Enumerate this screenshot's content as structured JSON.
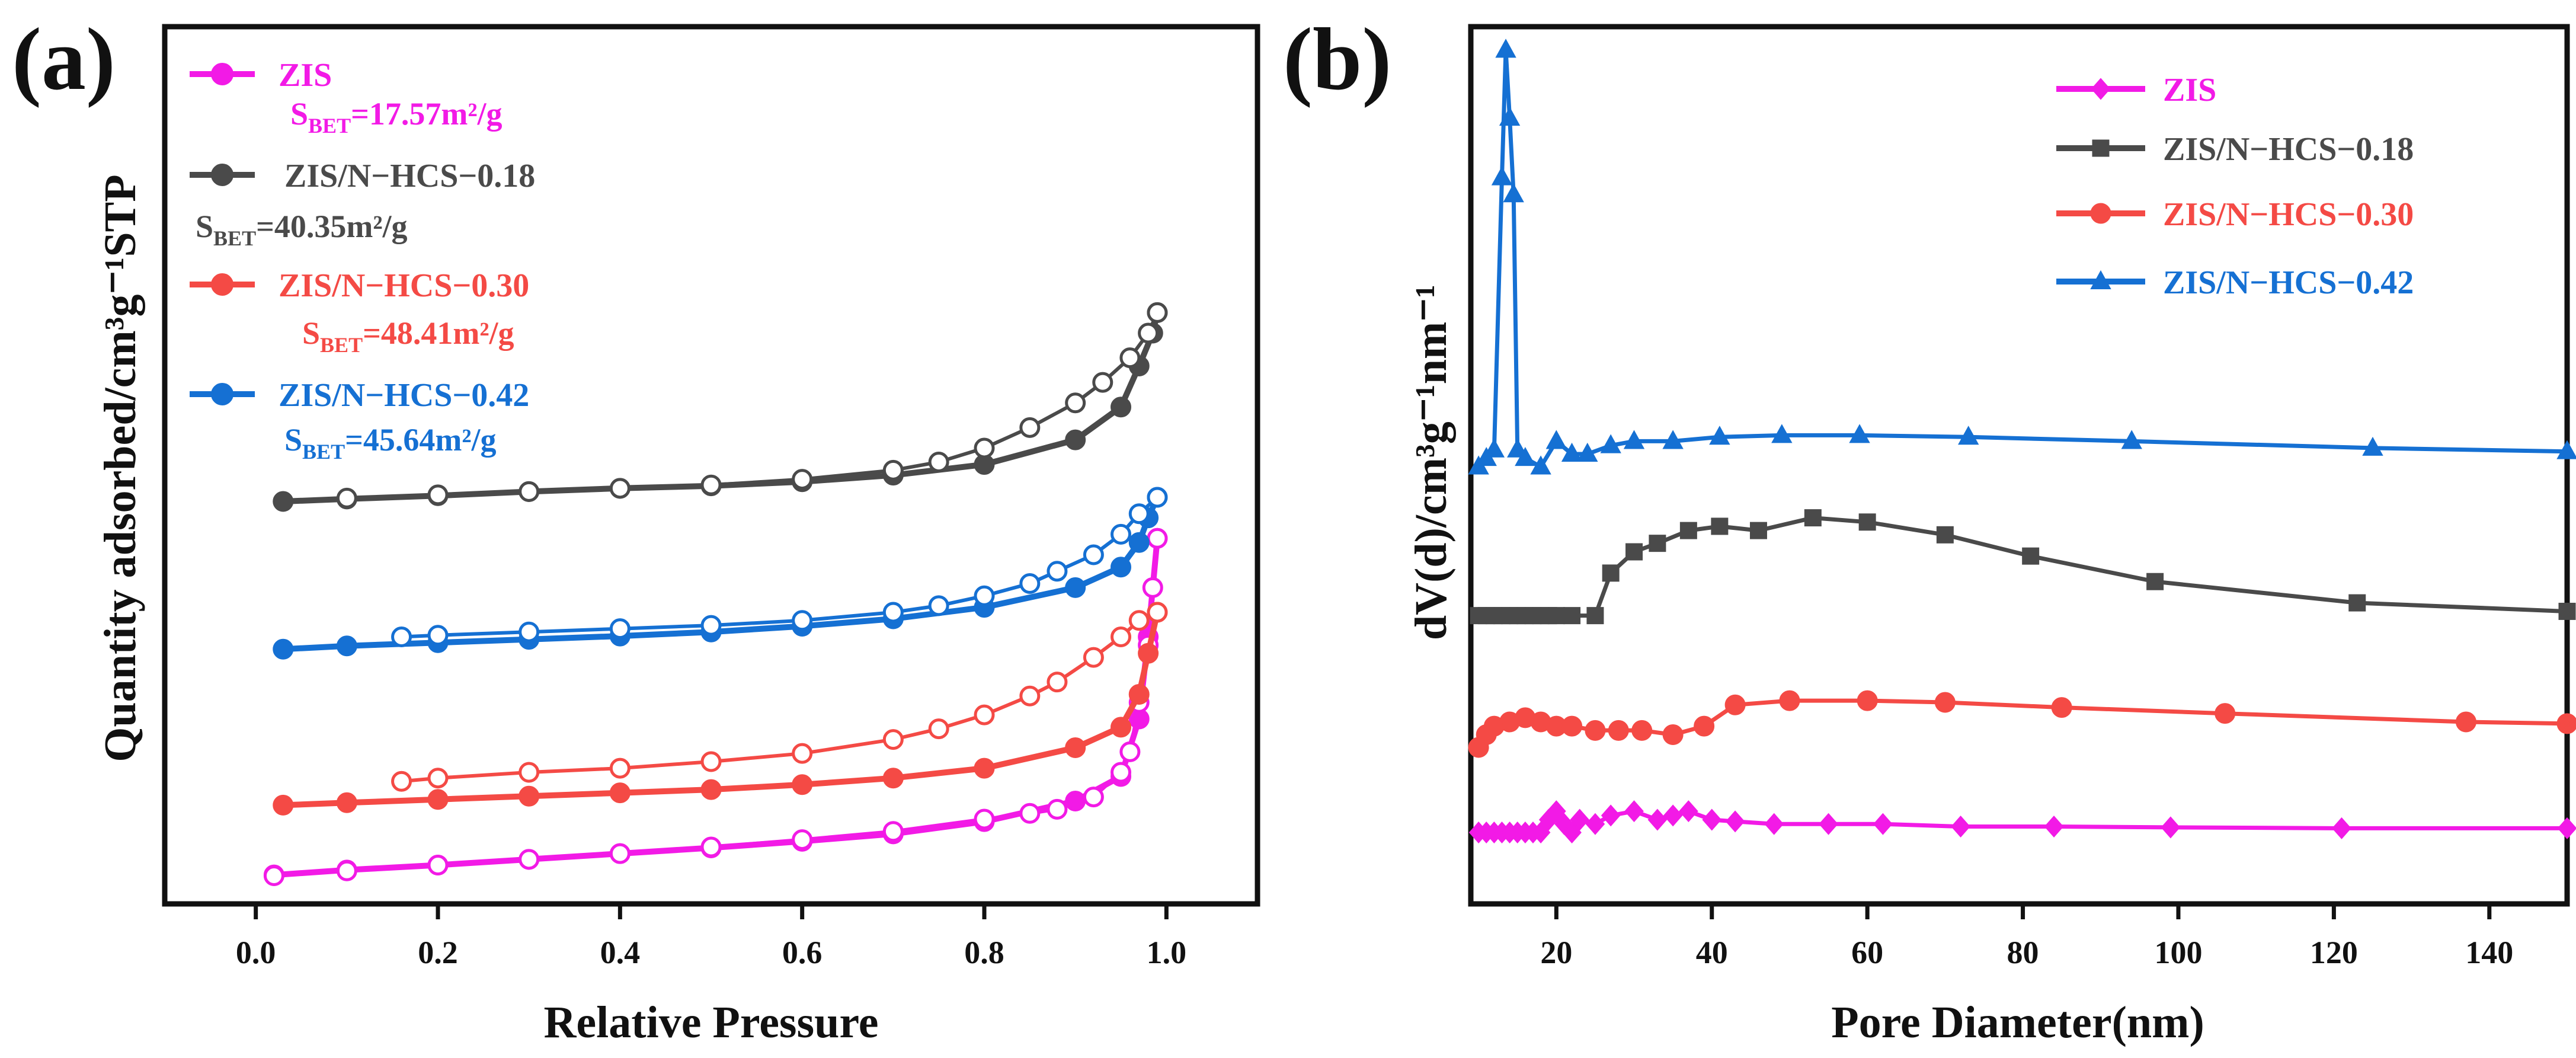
{
  "chart_data": [
    {
      "panel": "(a)",
      "type": "line",
      "xlabel": "Relative Pressure",
      "ylabel": "Quantity adsorbed/cm³g⁻¹STP",
      "xlim": [
        -0.1,
        1.1
      ],
      "ylim": [
        0,
        100
      ],
      "yticks_shown": false,
      "xticks": [
        0.0,
        0.2,
        0.4,
        0.6,
        0.8,
        1.0
      ],
      "xtick_labels": [
        "0.0",
        "0.2",
        "0.4",
        "0.6",
        "0.8",
        "1.0"
      ],
      "legend": [
        {
          "name": "ZIS",
          "bet_prefix": "S",
          "bet_sub": "BET",
          "bet_value": "=17.57m²/g",
          "color": "#f21ae6"
        },
        {
          "name": "ZIS/N−HCS−0.18",
          "bet_prefix": "S",
          "bet_sub": "BET",
          "bet_value": "=40.35m²/g",
          "color": "#4a4a4a"
        },
        {
          "name": "ZIS/N−HCS−0.30",
          "bet_prefix": "S",
          "bet_sub": "BET",
          "bet_value": "=48.41m²/g",
          "color": "#f44a45"
        },
        {
          "name": "ZIS/N−HCS−0.42",
          "bet_prefix": "S",
          "bet_sub": "BET",
          "bet_value": "=45.64m²/g",
          "color": "#1570d3"
        }
      ],
      "series": [
        {
          "name": "ZIS",
          "color": "#f21ae6",
          "adsorption": [
            [
              0.02,
              1.0
            ],
            [
              0.1,
              1.6
            ],
            [
              0.2,
              2.2
            ],
            [
              0.3,
              2.9
            ],
            [
              0.4,
              3.6
            ],
            [
              0.5,
              4.3
            ],
            [
              0.6,
              5.1
            ],
            [
              0.7,
              6.0
            ],
            [
              0.8,
              7.5
            ],
            [
              0.9,
              10.0
            ],
            [
              0.95,
              13.0
            ],
            [
              0.97,
              20.0
            ],
            [
              0.98,
              30.0
            ],
            [
              0.99,
              42.0
            ]
          ],
          "desorption": [
            [
              0.99,
              42.0
            ],
            [
              0.985,
              36.0
            ],
            [
              0.98,
              29.0
            ],
            [
              0.97,
              22.0
            ],
            [
              0.96,
              16.0
            ],
            [
              0.95,
              13.5
            ],
            [
              0.92,
              10.5
            ],
            [
              0.88,
              9.0
            ],
            [
              0.85,
              8.5
            ],
            [
              0.8,
              7.8
            ],
            [
              0.7,
              6.3
            ],
            [
              0.6,
              5.3
            ],
            [
              0.5,
              4.4
            ],
            [
              0.4,
              3.6
            ],
            [
              0.3,
              2.9
            ],
            [
              0.2,
              2.2
            ],
            [
              0.1,
              1.5
            ],
            [
              0.02,
              0.9
            ]
          ]
        },
        {
          "name": "ZIS/N−HCS−0.18",
          "color": "#4a4a4a",
          "adsorption": [
            [
              0.03,
              46.5
            ],
            [
              0.1,
              46.8
            ],
            [
              0.2,
              47.2
            ],
            [
              0.3,
              47.7
            ],
            [
              0.4,
              48.1
            ],
            [
              0.5,
              48.4
            ],
            [
              0.6,
              48.9
            ],
            [
              0.7,
              49.7
            ],
            [
              0.8,
              51.0
            ],
            [
              0.9,
              54.0
            ],
            [
              0.95,
              58.0
            ],
            [
              0.97,
              63.0
            ],
            [
              0.985,
              67.0
            ],
            [
              0.99,
              69.5
            ]
          ],
          "desorption": [
            [
              0.99,
              69.5
            ],
            [
              0.98,
              67.0
            ],
            [
              0.96,
              64.0
            ],
            [
              0.93,
              61.0
            ],
            [
              0.9,
              58.5
            ],
            [
              0.85,
              55.5
            ],
            [
              0.8,
              53.0
            ],
            [
              0.75,
              51.3
            ],
            [
              0.7,
              50.3
            ],
            [
              0.6,
              49.2
            ],
            [
              0.5,
              48.5
            ],
            [
              0.4,
              48.1
            ],
            [
              0.3,
              47.7
            ],
            [
              0.2,
              47.3
            ],
            [
              0.1,
              46.9
            ]
          ]
        },
        {
          "name": "ZIS/N−HCS−0.30",
          "color": "#f44a45",
          "adsorption": [
            [
              0.03,
              9.5
            ],
            [
              0.1,
              9.8
            ],
            [
              0.2,
              10.2
            ],
            [
              0.3,
              10.6
            ],
            [
              0.4,
              11.0
            ],
            [
              0.5,
              11.4
            ],
            [
              0.6,
              12.0
            ],
            [
              0.7,
              12.8
            ],
            [
              0.8,
              14.0
            ],
            [
              0.9,
              16.5
            ],
            [
              0.95,
              19.0
            ],
            [
              0.97,
              23.0
            ],
            [
              0.98,
              28.0
            ],
            [
              0.99,
              33.0
            ]
          ],
          "desorption": [
            [
              0.99,
              33.0
            ],
            [
              0.97,
              32.0
            ],
            [
              0.95,
              30.0
            ],
            [
              0.92,
              27.5
            ],
            [
              0.88,
              24.5
            ],
            [
              0.85,
              22.8
            ],
            [
              0.8,
              20.5
            ],
            [
              0.75,
              18.8
            ],
            [
              0.7,
              17.5
            ],
            [
              0.6,
              15.8
            ],
            [
              0.5,
              14.8
            ],
            [
              0.4,
              14.0
            ],
            [
              0.3,
              13.5
            ],
            [
              0.2,
              12.8
            ],
            [
              0.16,
              12.4
            ]
          ]
        },
        {
          "name": "ZIS/N−HCS−0.42",
          "color": "#1570d3",
          "adsorption": [
            [
              0.03,
              28.5
            ],
            [
              0.1,
              28.9
            ],
            [
              0.2,
              29.3
            ],
            [
              0.3,
              29.7
            ],
            [
              0.4,
              30.1
            ],
            [
              0.5,
              30.6
            ],
            [
              0.6,
              31.3
            ],
            [
              0.7,
              32.2
            ],
            [
              0.8,
              33.6
            ],
            [
              0.9,
              36.0
            ],
            [
              0.95,
              38.5
            ],
            [
              0.97,
              41.5
            ],
            [
              0.98,
              44.5
            ],
            [
              0.99,
              47.0
            ]
          ],
          "desorption": [
            [
              0.99,
              47.0
            ],
            [
              0.97,
              45.0
            ],
            [
              0.95,
              42.5
            ],
            [
              0.92,
              40.0
            ],
            [
              0.88,
              38.0
            ],
            [
              0.85,
              36.5
            ],
            [
              0.8,
              35.0
            ],
            [
              0.75,
              33.8
            ],
            [
              0.7,
              33.0
            ],
            [
              0.6,
              32.0
            ],
            [
              0.5,
              31.4
            ],
            [
              0.4,
              31.0
            ],
            [
              0.3,
              30.6
            ],
            [
              0.2,
              30.2
            ],
            [
              0.16,
              30.0
            ]
          ]
        }
      ]
    },
    {
      "panel": "(b)",
      "type": "line",
      "xlabel": "Pore Diameter(nm)",
      "ylabel": "dV(d)/cm³g⁻¹nm⁻¹",
      "xlim": [
        9,
        150
      ],
      "ylim": [
        0,
        100
      ],
      "yticks_shown": false,
      "xticks": [
        20,
        40,
        60,
        80,
        100,
        120,
        140
      ],
      "xtick_labels": [
        "20",
        "40",
        "60",
        "80",
        "100",
        "120",
        "140"
      ],
      "legend": [
        {
          "name": "ZIS",
          "color": "#f21ae6",
          "marker": "diamond"
        },
        {
          "name": "ZIS/N−HCS−0.18",
          "color": "#4a4a4a",
          "marker": "square"
        },
        {
          "name": "ZIS/N−HCS−0.30",
          "color": "#f44a45",
          "marker": "circle"
        },
        {
          "name": "ZIS/N−HCS−0.42",
          "color": "#1570d3",
          "marker": "triangle"
        }
      ],
      "series": [
        {
          "name": "ZIS",
          "color": "#f21ae6",
          "marker": "diamond",
          "points": [
            [
              10,
              7.0
            ],
            [
              11,
              7.0
            ],
            [
              12,
              7.0
            ],
            [
              13,
              7.0
            ],
            [
              14,
              7.0
            ],
            [
              15,
              7.0
            ],
            [
              16,
              7.0
            ],
            [
              17,
              7.0
            ],
            [
              18,
              7.0
            ],
            [
              19,
              8.5
            ],
            [
              20,
              9.5
            ],
            [
              21,
              8.0
            ],
            [
              22,
              7.0
            ],
            [
              23,
              8.5
            ],
            [
              25,
              8.0
            ],
            [
              27,
              9.0
            ],
            [
              30,
              9.5
            ],
            [
              33,
              8.5
            ],
            [
              35,
              9.0
            ],
            [
              37,
              9.5
            ],
            [
              40,
              8.5
            ],
            [
              43,
              8.3
            ],
            [
              48,
              8.0
            ],
            [
              55,
              8.0
            ],
            [
              62,
              8.0
            ],
            [
              72,
              7.7
            ],
            [
              84,
              7.7
            ],
            [
              99,
              7.6
            ],
            [
              121,
              7.5
            ],
            [
              150,
              7.5
            ]
          ]
        },
        {
          "name": "ZIS/N−HCS−0.18",
          "color": "#4a4a4a",
          "marker": "square",
          "points": [
            [
              10,
              32.5
            ],
            [
              11,
              32.5
            ],
            [
              12,
              32.5
            ],
            [
              13,
              32.5
            ],
            [
              14,
              32.5
            ],
            [
              15,
              32.5
            ],
            [
              16,
              32.5
            ],
            [
              17,
              32.5
            ],
            [
              18,
              32.5
            ],
            [
              19,
              32.5
            ],
            [
              20,
              32.5
            ],
            [
              22,
              32.5
            ],
            [
              25,
              32.5
            ],
            [
              27,
              37.5
            ],
            [
              30,
              40.0
            ],
            [
              33,
              41.0
            ],
            [
              37,
              42.5
            ],
            [
              41,
              43.0
            ],
            [
              46,
              42.5
            ],
            [
              53,
              44.0
            ],
            [
              60,
              43.5
            ],
            [
              70,
              42.0
            ],
            [
              81,
              39.5
            ],
            [
              97,
              36.5
            ],
            [
              123,
              34.0
            ],
            [
              150,
              33.0
            ]
          ]
        },
        {
          "name": "ZIS/N−HCS−0.30",
          "color": "#f44a45",
          "marker": "circle",
          "points": [
            [
              10,
              17.0
            ],
            [
              11,
              18.5
            ],
            [
              12,
              19.5
            ],
            [
              14,
              20.0
            ],
            [
              16,
              20.5
            ],
            [
              18,
              20.0
            ],
            [
              20,
              19.5
            ],
            [
              22,
              19.5
            ],
            [
              25,
              19.0
            ],
            [
              28,
              19.0
            ],
            [
              31,
              19.0
            ],
            [
              35,
              18.5
            ],
            [
              39,
              19.5
            ],
            [
              43,
              22.0
            ],
            [
              50,
              22.5
            ],
            [
              60,
              22.5
            ],
            [
              70,
              22.3
            ],
            [
              85,
              21.7
            ],
            [
              106,
              21.0
            ],
            [
              137,
              20.0
            ],
            [
              150,
              19.8
            ]
          ]
        },
        {
          "name": "ZIS/N−HCS−0.42",
          "color": "#1570d3",
          "marker": "triangle",
          "points": [
            [
              10,
              50.0
            ],
            [
              11,
              51.0
            ],
            [
              12,
              52.0
            ],
            [
              13,
              84.0
            ],
            [
              13.5,
              99.0
            ],
            [
              14,
              91.0
            ],
            [
              14.5,
              82.0
            ],
            [
              15,
              52.0
            ],
            [
              16,
              51.0
            ],
            [
              18,
              50.0
            ],
            [
              20,
              53.0
            ],
            [
              22,
              51.5
            ],
            [
              24,
              51.5
            ],
            [
              27,
              52.5
            ],
            [
              30,
              53.0
            ],
            [
              35,
              53.0
            ],
            [
              41,
              53.5
            ],
            [
              49,
              53.7
            ],
            [
              59,
              53.7
            ],
            [
              73,
              53.5
            ],
            [
              94,
              53.0
            ],
            [
              125,
              52.2
            ],
            [
              150,
              51.8
            ]
          ]
        }
      ]
    }
  ]
}
